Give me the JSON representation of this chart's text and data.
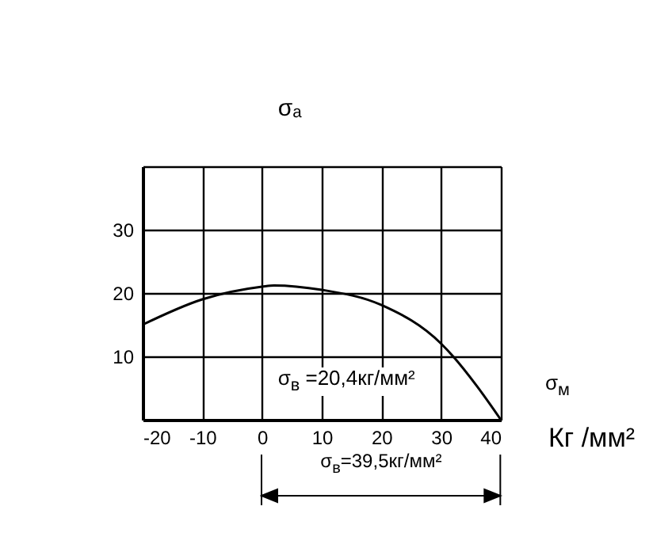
{
  "chart_data": {
    "type": "line",
    "xlabel": "σ$_{м}$",
    "ylabel": "σₐ",
    "annotations": [
      "σ$_{в}$ =20,4кг/мм²",
      "Кг /мм²",
      "σ$_{в}$=39,5кг/мм²"
    ],
    "x": [
      -20,
      -10,
      0,
      2,
      10,
      20,
      30,
      32,
      36,
      40
    ],
    "series": [
      {
        "color": "#000000",
        "values": [
          15,
          19,
          21,
          21.2,
          20.5,
          18.1,
          12,
          10,
          5.3,
          0
        ]
      }
    ],
    "xlim": [
      -20,
      40
    ],
    "ylim": [
      0,
      40
    ],
    "xticks": [
      -20,
      -10,
      0,
      10,
      20,
      30,
      40
    ],
    "yticks": [
      {
        "value": 0,
        "label": null
      },
      10,
      20,
      30,
      {
        "value": 40,
        "label": null
      }
    ],
    "grid": true,
    "marker": "none",
    "line_style": "solid"
  }
}
